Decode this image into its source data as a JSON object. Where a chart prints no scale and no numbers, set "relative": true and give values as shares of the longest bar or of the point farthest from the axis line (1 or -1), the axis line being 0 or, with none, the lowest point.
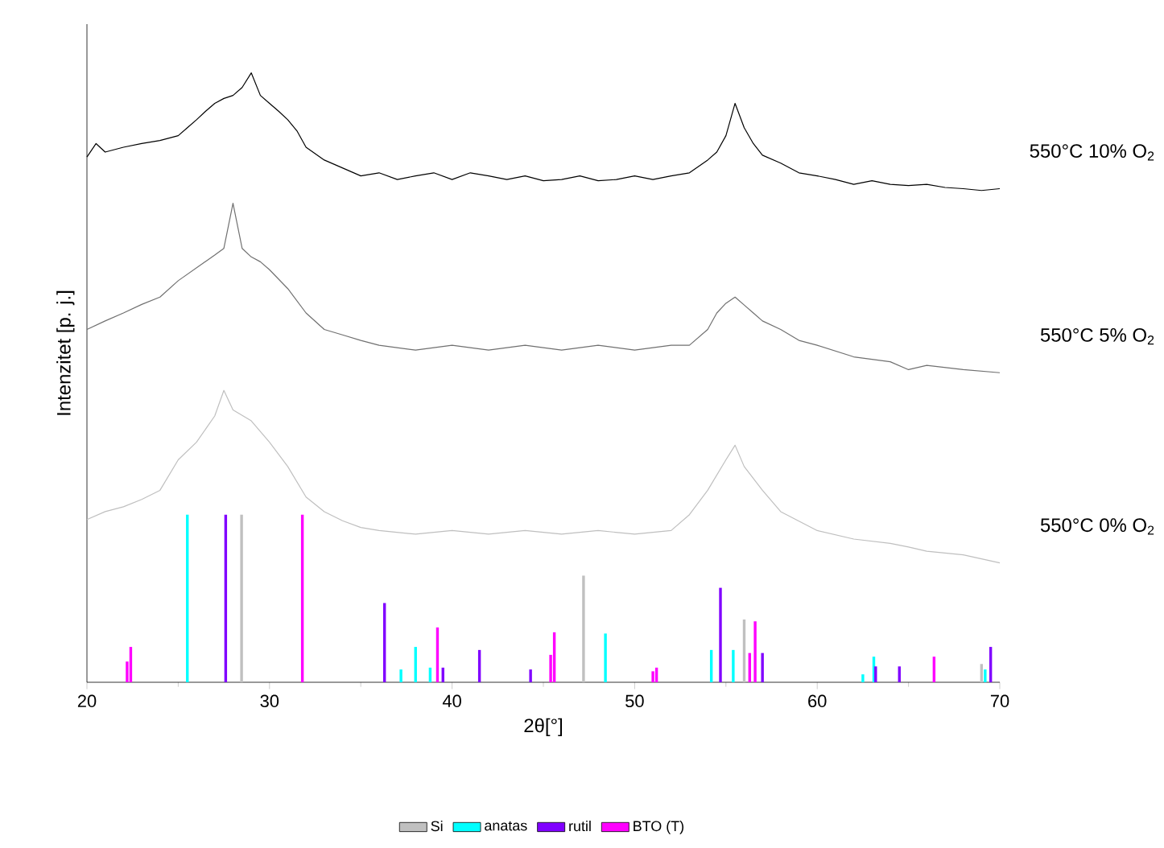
{
  "chart_data": {
    "type": "line",
    "relative": true,
    "xlabel": "2θ[°]",
    "ylabel": "Intenzitet [p. j.]",
    "xlim": [
      20,
      70
    ],
    "xticks": [
      20,
      30,
      40,
      50,
      60,
      70
    ],
    "legend": "bottom",
    "series": [
      {
        "name": "550°C 10% O$_{2}$",
        "color": "#000000",
        "x": [
          20,
          20.5,
          21,
          22,
          23,
          24,
          25,
          25.5,
          26,
          26.5,
          27,
          27.5,
          28,
          28.5,
          29,
          29.5,
          30,
          30.5,
          31,
          31.5,
          32,
          33,
          34,
          35,
          36,
          37,
          38,
          39,
          40,
          41,
          42,
          43,
          44,
          45,
          46,
          47,
          48,
          49,
          50,
          51,
          52,
          53,
          54,
          54.5,
          55,
          55.5,
          56,
          56.5,
          57,
          58,
          59,
          60,
          61,
          62,
          63,
          64,
          65,
          66,
          67,
          68,
          69,
          70
        ],
        "values": [
          0.862,
          0.884,
          0.87,
          0.878,
          0.884,
          0.889,
          0.897,
          0.91,
          0.923,
          0.937,
          0.95,
          0.958,
          0.963,
          0.976,
          1.0,
          0.963,
          0.95,
          0.937,
          0.923,
          0.905,
          0.878,
          0.857,
          0.844,
          0.831,
          0.836,
          0.825,
          0.831,
          0.836,
          0.825,
          0.836,
          0.831,
          0.825,
          0.831,
          0.823,
          0.825,
          0.831,
          0.823,
          0.825,
          0.831,
          0.825,
          0.831,
          0.836,
          0.857,
          0.87,
          0.897,
          0.95,
          0.91,
          0.884,
          0.865,
          0.852,
          0.836,
          0.831,
          0.825,
          0.817,
          0.823,
          0.817,
          0.815,
          0.817,
          0.812,
          0.81,
          0.807,
          0.81
        ]
      },
      {
        "name": "550°C 5% O$_{2}$",
        "color": "#707070",
        "x": [
          20,
          21,
          22,
          23,
          24,
          25,
          26,
          27,
          27.5,
          28,
          28.5,
          29,
          29.5,
          30,
          31,
          32,
          33,
          34,
          35,
          36,
          38,
          40,
          42,
          44,
          46,
          48,
          50,
          52,
          53,
          54,
          54.5,
          55,
          55.5,
          56,
          56.5,
          57,
          58,
          59,
          60,
          62,
          64,
          65,
          66,
          68,
          70
        ],
        "values": [
          0.579,
          0.593,
          0.606,
          0.62,
          0.632,
          0.659,
          0.68,
          0.701,
          0.712,
          0.786,
          0.712,
          0.698,
          0.69,
          0.677,
          0.646,
          0.606,
          0.579,
          0.57,
          0.561,
          0.553,
          0.545,
          0.553,
          0.545,
          0.553,
          0.545,
          0.553,
          0.545,
          0.553,
          0.553,
          0.579,
          0.606,
          0.622,
          0.632,
          0.619,
          0.606,
          0.593,
          0.579,
          0.561,
          0.553,
          0.534,
          0.526,
          0.513,
          0.52,
          0.513,
          0.508
        ]
      },
      {
        "name": "550°C 0% O$_{2}$",
        "color": "#bfbfbf",
        "x": [
          20,
          21,
          22,
          23,
          24,
          25,
          26,
          27,
          27.5,
          28,
          29,
          30,
          31,
          32,
          33,
          34,
          35,
          36,
          38,
          40,
          42,
          44,
          46,
          48,
          50,
          52,
          53,
          54,
          55,
          55.5,
          56,
          57,
          58,
          60,
          62,
          64,
          65,
          66,
          68,
          70
        ],
        "values": [
          0.267,
          0.28,
          0.288,
          0.3,
          0.315,
          0.365,
          0.394,
          0.437,
          0.479,
          0.447,
          0.429,
          0.394,
          0.354,
          0.304,
          0.28,
          0.265,
          0.254,
          0.249,
          0.243,
          0.249,
          0.243,
          0.249,
          0.243,
          0.249,
          0.243,
          0.249,
          0.275,
          0.315,
          0.365,
          0.389,
          0.354,
          0.315,
          0.28,
          0.249,
          0.235,
          0.228,
          0.222,
          0.215,
          0.209,
          0.196
        ]
      },
      {
        "name": "Si",
        "type": "bar",
        "color": "#c0c0c0",
        "x": [
          28.47,
          47.2,
          56.0,
          69.0
        ],
        "values": [
          0.275,
          0.175,
          0.103,
          0.03
        ]
      },
      {
        "name": "anatas",
        "type": "bar",
        "color": "#00ffff",
        "x": [
          25.5,
          37.2,
          38.0,
          38.8,
          48.4,
          54.2,
          55.4,
          62.5,
          63.1,
          69.2
        ],
        "values": [
          0.275,
          0.021,
          0.058,
          0.024,
          0.08,
          0.053,
          0.053,
          0.013,
          0.042,
          0.021
        ]
      },
      {
        "name": "rutil",
        "type": "bar",
        "color": "#8000ff",
        "x": [
          27.6,
          36.3,
          39.5,
          41.5,
          44.3,
          54.7,
          57.0,
          63.2,
          64.5,
          69.5
        ],
        "values": [
          0.275,
          0.13,
          0.024,
          0.053,
          0.021,
          0.155,
          0.048,
          0.026,
          0.026,
          0.058
        ]
      },
      {
        "name": "BTO (T)",
        "type": "bar",
        "color": "#ff00ff",
        "x": [
          22.2,
          22.4,
          31.8,
          39.2,
          45.4,
          45.6,
          51.0,
          51.2,
          56.3,
          56.6,
          66.4
        ],
        "values": [
          0.034,
          0.058,
          0.275,
          0.09,
          0.045,
          0.082,
          0.018,
          0.024,
          0.048,
          0.1,
          0.042
        ]
      }
    ]
  }
}
